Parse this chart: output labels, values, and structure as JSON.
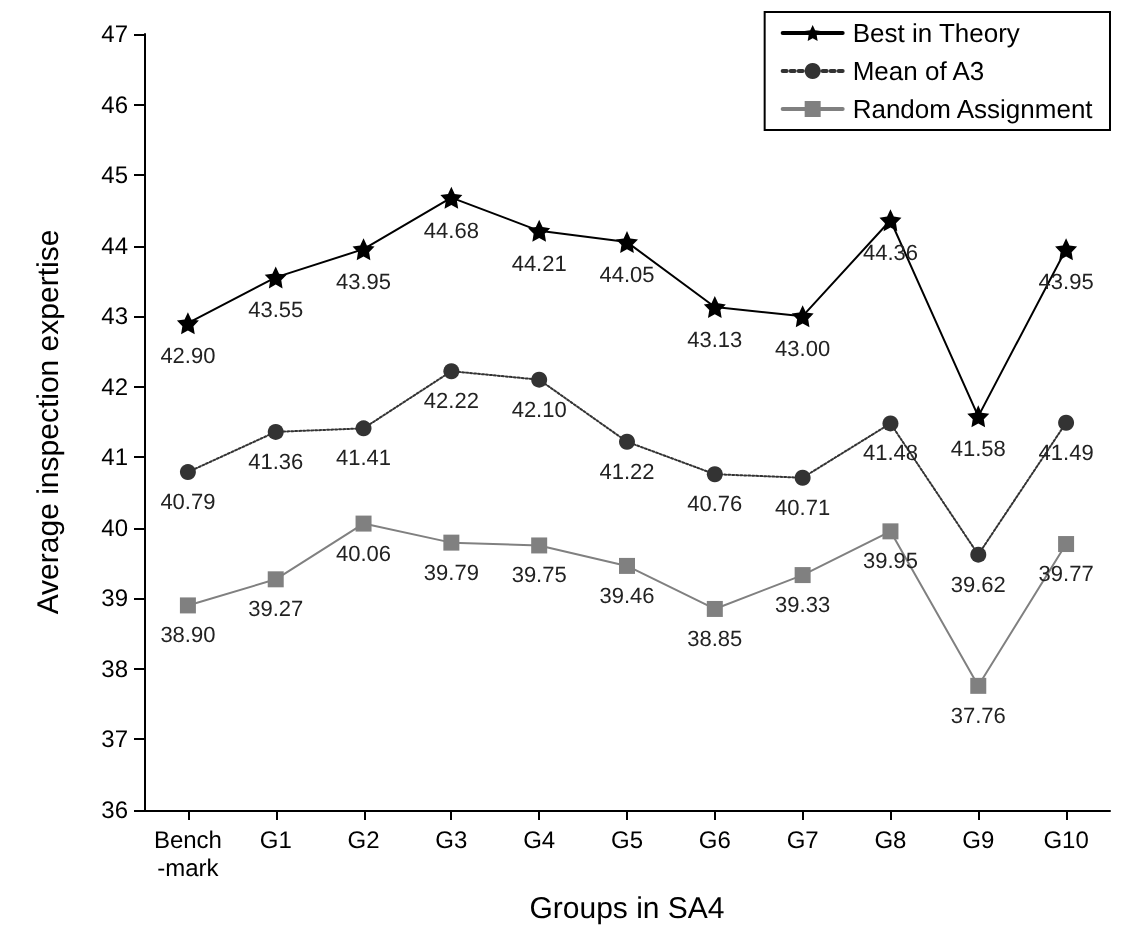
{
  "chart_data": {
    "type": "line",
    "xlabel": "Groups in SA4",
    "ylabel": "Average inspection expertise",
    "categories": [
      "Bench\n-mark",
      "G1",
      "G2",
      "G3",
      "G4",
      "G5",
      "G6",
      "G7",
      "G8",
      "G9",
      "G10"
    ],
    "ylim": [
      36,
      47
    ],
    "yticks": [
      36,
      37,
      38,
      39,
      40,
      41,
      42,
      43,
      44,
      45,
      46,
      47
    ],
    "grid": false,
    "legend": "top right",
    "series": [
      {
        "name": "Best in Theory",
        "color": "#000000",
        "marker": "star",
        "line_style": "solid",
        "values": [
          42.9,
          43.55,
          43.95,
          44.68,
          44.21,
          44.05,
          43.13,
          43.0,
          44.36,
          41.58,
          43.95
        ],
        "value_labels": [
          "42.90",
          "43.55",
          "43.95",
          "44.68",
          "44.21",
          "44.05",
          "43.13",
          "43.00",
          "44.36",
          "41.58",
          "43.95"
        ]
      },
      {
        "name": "Mean of A3",
        "color": "#333333",
        "marker": "circle",
        "line_style": "dotted",
        "values": [
          40.79,
          41.36,
          41.41,
          42.22,
          42.1,
          41.22,
          40.76,
          40.71,
          41.48,
          39.62,
          41.49
        ],
        "value_labels": [
          "40.79",
          "41.36",
          "41.41",
          "42.22",
          "42.10",
          "41.22",
          "40.76",
          "40.71",
          "41.48",
          "39.62",
          "41.49"
        ]
      },
      {
        "name": "Random Assignment",
        "color": "#808080",
        "marker": "square",
        "line_style": "solid",
        "values": [
          38.9,
          39.27,
          40.06,
          39.79,
          39.75,
          39.46,
          38.85,
          39.33,
          39.95,
          37.76,
          39.77
        ],
        "value_labels": [
          "38.90",
          "39.27",
          "40.06",
          "39.79",
          "39.75",
          "39.46",
          "38.85",
          "39.33",
          "39.95",
          "37.76",
          "39.77"
        ]
      }
    ]
  }
}
